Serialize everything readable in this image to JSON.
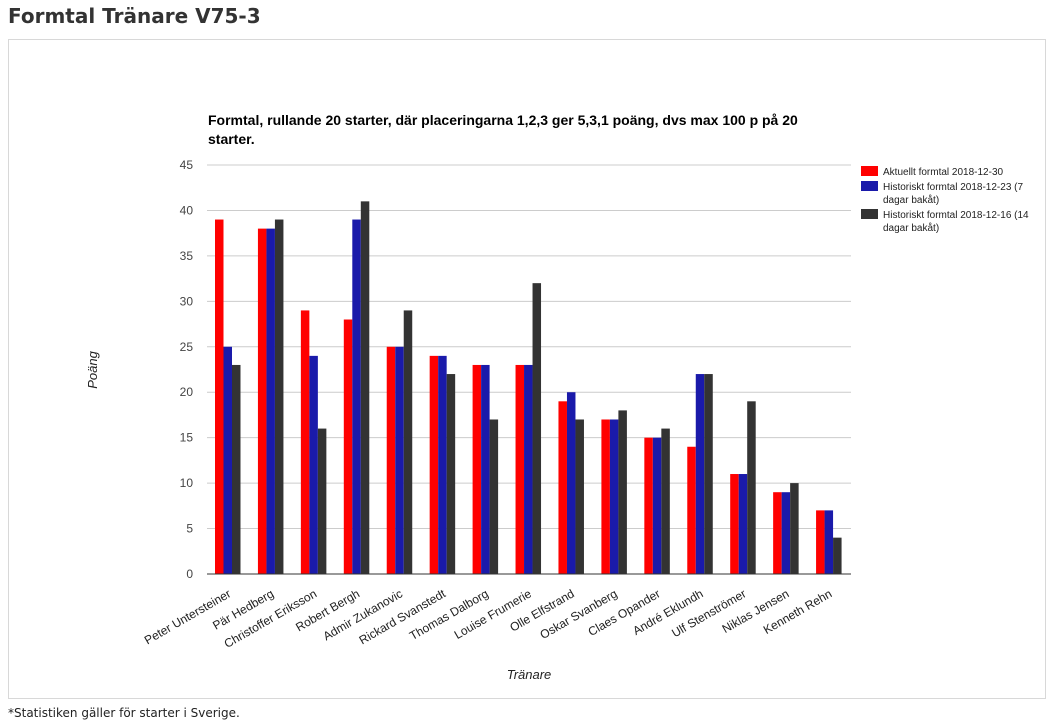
{
  "page": {
    "title": "Formtal Tränare V75-3",
    "footnote": "*Statistiken gäller för starter i Sverige."
  },
  "chart_data": {
    "type": "bar",
    "title_lines": [
      "Formtal, rullande 20 starter, där placeringarna 1,2,3 ger 5,3,1 poäng, dvs max 100 p på 20",
      "starter."
    ],
    "xlabel": "Tränare",
    "ylabel": "Poäng",
    "ylim": [
      0,
      45
    ],
    "yticks": [
      0,
      5,
      10,
      15,
      20,
      25,
      30,
      35,
      40,
      45
    ],
    "grid": true,
    "legend_position": "right",
    "categories": [
      "Peter Untersteiner",
      "Pär Hedberg",
      "Christoffer Eriksson",
      "Robert Bergh",
      "Admir Zukanovic",
      "Rickard Svanstedt",
      "Thomas Dalborg",
      "Louise Frumerie",
      "Olle Elfstrand",
      "Oskar Svanberg",
      "Claes Opander",
      "André Eklundh",
      "Ulf Stenströmer",
      "Niklas Jensen",
      "Kenneth Rehn"
    ],
    "series": [
      {
        "name": "Aktuellt formtal 2018-12-30",
        "legend_lines": [
          "Aktuellt formtal 2018-12-30"
        ],
        "color": "#ff0000",
        "values": [
          39,
          38,
          29,
          28,
          25,
          24,
          23,
          23,
          19,
          17,
          15,
          14,
          11,
          9,
          7
        ]
      },
      {
        "name": "Historiskt formtal 2018-12-23 (7 dagar bakåt)",
        "legend_lines": [
          "Historiskt formtal 2018-12-23 (7",
          "dagar bakåt)"
        ],
        "color": "#1a1aaa",
        "values": [
          25,
          38,
          24,
          39,
          25,
          24,
          23,
          23,
          20,
          17,
          15,
          22,
          11,
          9,
          7
        ]
      },
      {
        "name": "Historiskt formtal 2018-12-16 (14 dagar bakåt)",
        "legend_lines": [
          "Historiskt formtal 2018-12-16 (14",
          "dagar bakåt)"
        ],
        "color": "#333333",
        "values": [
          23,
          39,
          16,
          41,
          29,
          22,
          17,
          32,
          17,
          18,
          16,
          22,
          19,
          10,
          4
        ]
      }
    ]
  }
}
